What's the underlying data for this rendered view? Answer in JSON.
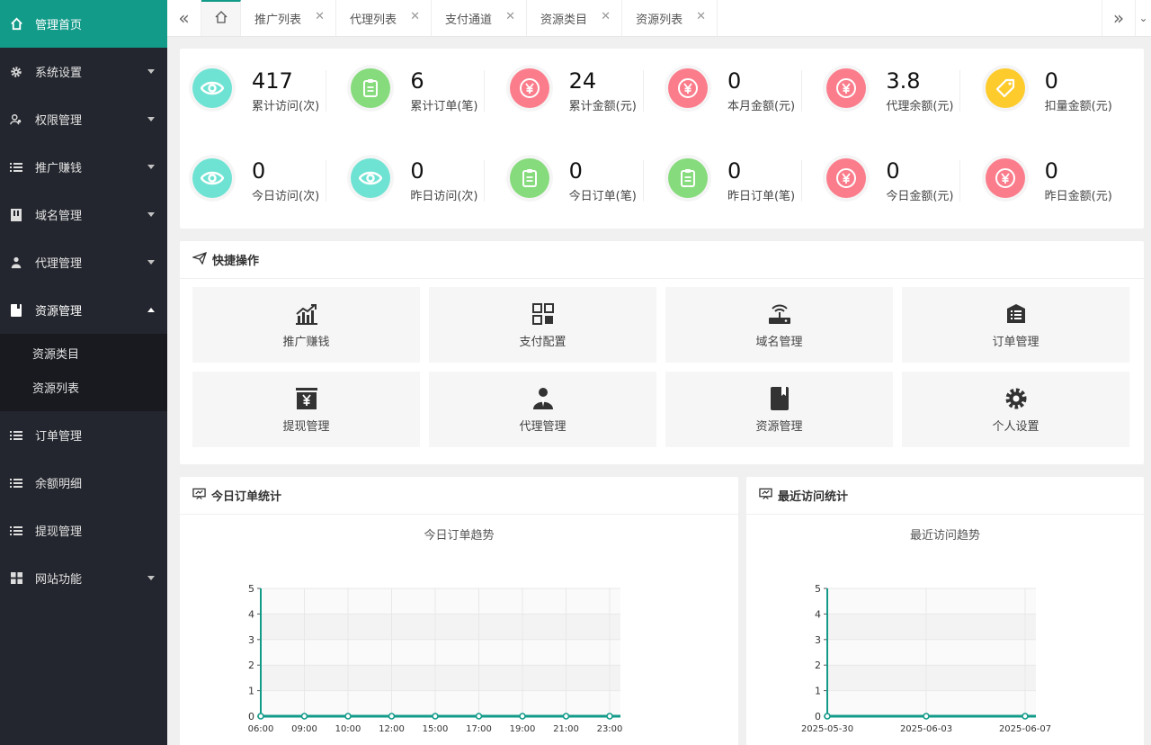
{
  "sidebar": {
    "items": [
      {
        "label": "管理首页",
        "icon": "home-icon"
      },
      {
        "label": "系统设置",
        "icon": "gear-icon"
      },
      {
        "label": "权限管理",
        "icon": "users-icon"
      },
      {
        "label": "推广赚钱",
        "icon": "list-icon"
      },
      {
        "label": "域名管理",
        "icon": "server-icon"
      },
      {
        "label": "代理管理",
        "icon": "agent-icon"
      },
      {
        "label": "资源管理",
        "icon": "book-icon"
      },
      {
        "label": "订单管理",
        "icon": "list-icon"
      },
      {
        "label": "余额明细",
        "icon": "list-icon"
      },
      {
        "label": "提现管理",
        "icon": "list-icon"
      },
      {
        "label": "网站功能",
        "icon": "grid-icon"
      }
    ],
    "sub_items": [
      "资源类目",
      "资源列表"
    ]
  },
  "tabs": [
    {
      "label": "推广列表"
    },
    {
      "label": "代理列表"
    },
    {
      "label": "支付通道"
    },
    {
      "label": "资源类目"
    },
    {
      "label": "资源列表"
    }
  ],
  "stats": {
    "row1": [
      {
        "value": "417",
        "label": "累计访问(次)",
        "icon": "eye-icon",
        "color": "#6fe3d3"
      },
      {
        "value": "6",
        "label": "累计订单(笔)",
        "icon": "clipboard-icon",
        "color": "#86db7c"
      },
      {
        "value": "24",
        "label": "累计金额(元)",
        "icon": "yen-icon",
        "color": "#fb7d8c"
      },
      {
        "value": "0",
        "label": "本月金额(元)",
        "icon": "yen-icon",
        "color": "#fb7d8c"
      },
      {
        "value": "3.8",
        "label": "代理余额(元)",
        "icon": "yen-icon",
        "color": "#fb7d8c"
      },
      {
        "value": "0",
        "label": "扣量金额(元)",
        "icon": "tag-icon",
        "color": "#fdcb2c"
      }
    ],
    "row2": [
      {
        "value": "0",
        "label": "今日访问(次)",
        "icon": "eye-icon",
        "color": "#6fe3d3"
      },
      {
        "value": "0",
        "label": "昨日访问(次)",
        "icon": "eye-icon",
        "color": "#6fe3d3"
      },
      {
        "value": "0",
        "label": "今日订单(笔)",
        "icon": "clipboard-icon",
        "color": "#86db7c"
      },
      {
        "value": "0",
        "label": "昨日订单(笔)",
        "icon": "clipboard-icon",
        "color": "#86db7c"
      },
      {
        "value": "0",
        "label": "今日金额(元)",
        "icon": "yen-icon",
        "color": "#fb7d8c"
      },
      {
        "value": "0",
        "label": "昨日金额(元)",
        "icon": "yen-icon",
        "color": "#fb7d8c"
      }
    ]
  },
  "quick": {
    "title": "快捷操作",
    "buttons": [
      {
        "label": "推广赚钱",
        "icon": "chart-up-icon"
      },
      {
        "label": "支付配置",
        "icon": "grid-icon"
      },
      {
        "label": "域名管理",
        "icon": "router-icon"
      },
      {
        "label": "订单管理",
        "icon": "list-box-icon"
      },
      {
        "label": "提现管理",
        "icon": "cash-icon"
      },
      {
        "label": "代理管理",
        "icon": "person-icon"
      },
      {
        "label": "资源管理",
        "icon": "book-icon"
      },
      {
        "label": "个人设置",
        "icon": "gear-icon"
      }
    ]
  },
  "panels": {
    "orders_title": "今日订单统计",
    "visits_title": "最近访问统计"
  },
  "chart_data": [
    {
      "type": "line",
      "title": "今日订单趋势",
      "x": [
        "06:00",
        "09:00",
        "10:00",
        "12:00",
        "15:00",
        "17:00",
        "19:00",
        "21:00",
        "23:00"
      ],
      "series": [
        {
          "values": [
            0,
            0,
            0,
            0,
            0,
            0,
            0,
            0,
            0
          ]
        }
      ],
      "ylim": [
        0,
        5
      ],
      "yticks": [
        "0",
        "1",
        "2",
        "3",
        "4",
        "5"
      ],
      "color": "#139b8a"
    },
    {
      "type": "line",
      "title": "最近访问趋势",
      "x": [
        "2025-05-30",
        "2025-06-03",
        "2025-06-07"
      ],
      "series": [
        {
          "values": [
            0,
            0,
            0
          ]
        }
      ],
      "ylim": [
        0,
        5
      ],
      "yticks": [
        "0",
        "1",
        "2",
        "3",
        "4",
        "5"
      ],
      "color": "#139b8a"
    }
  ]
}
